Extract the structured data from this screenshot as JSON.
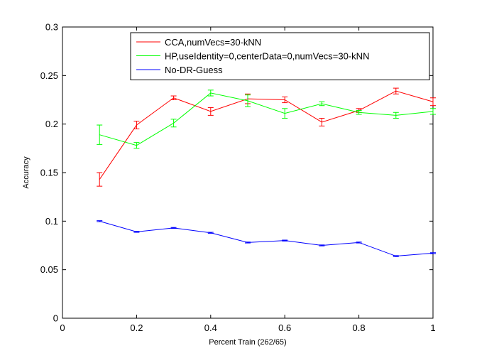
{
  "chart_data": {
    "type": "line",
    "xlabel": "Percent Train (262/65)",
    "ylabel": "Accuracy",
    "xlim": [
      0,
      1
    ],
    "ylim": [
      0,
      0.3
    ],
    "xticks": [
      0,
      0.2,
      0.4,
      0.6,
      0.8,
      1
    ],
    "xtick_labels": [
      "0",
      "0.2",
      "0.4",
      "0.6",
      "0.8",
      "1"
    ],
    "yticks": [
      0,
      0.05,
      0.1,
      0.15,
      0.2,
      0.25,
      0.3
    ],
    "ytick_labels": [
      "0",
      "0.05",
      "0.1",
      "0.15",
      "0.2",
      "0.25",
      "0.3"
    ],
    "grid": false,
    "legend_position": "top-right",
    "x": [
      0.1,
      0.2,
      0.3,
      0.4,
      0.5,
      0.6,
      0.7,
      0.8,
      0.9,
      1.0
    ],
    "series": [
      {
        "name": "CCA,numVecs=30-kNN",
        "color": "#ff0000",
        "values": [
          0.143,
          0.199,
          0.227,
          0.213,
          0.226,
          0.225,
          0.202,
          0.214,
          0.234,
          0.223
        ],
        "errors": [
          0.007,
          0.004,
          0.002,
          0.004,
          0.005,
          0.003,
          0.004,
          0.002,
          0.003,
          0.004
        ]
      },
      {
        "name": "HP,useIdentity=0,centerData=0,numVecs=30-kNN",
        "color": "#00ff00",
        "values": [
          0.189,
          0.178,
          0.201,
          0.232,
          0.224,
          0.211,
          0.221,
          0.212,
          0.209,
          0.213
        ],
        "errors": [
          0.01,
          0.003,
          0.004,
          0.003,
          0.006,
          0.005,
          0.002,
          0.002,
          0.003,
          0.003
        ]
      },
      {
        "name": "No-DR-Guess",
        "color": "#0000ff",
        "values": [
          0.1,
          0.089,
          0.093,
          0.088,
          0.078,
          0.08,
          0.075,
          0.078,
          0.064,
          0.067
        ],
        "errors": [
          0.0005,
          0.0005,
          0.0005,
          0.0005,
          0.0005,
          0.0005,
          0.0005,
          0.0005,
          0.0005,
          0.0005
        ]
      }
    ]
  }
}
